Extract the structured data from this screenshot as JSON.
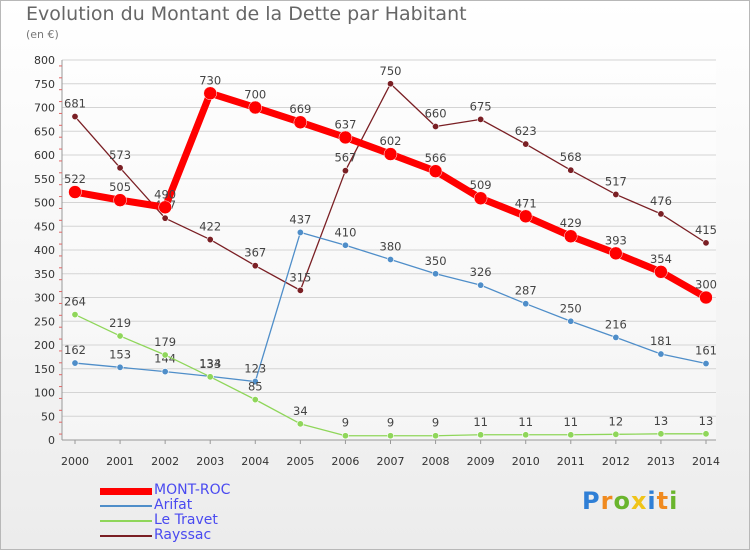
{
  "title": "Evolution du Montant de la Dette par Habitant",
  "subtitle": "(en €)",
  "brand": {
    "letters": [
      "P",
      "r",
      "o",
      "x",
      "i",
      "t",
      "i"
    ],
    "colors": [
      "#2f7fd6",
      "#f08a1f",
      "#6ab52d",
      "#f0c419",
      "#2f7fd6",
      "#f08a1f",
      "#6ab52d"
    ]
  },
  "chart_data": {
    "type": "line",
    "x": [
      "2000",
      "2001",
      "2002",
      "2003",
      "2004",
      "2005",
      "2006",
      "2007",
      "2008",
      "2009",
      "2010",
      "2011",
      "2012",
      "2013",
      "2014"
    ],
    "ylim": [
      0,
      800
    ],
    "yticks": [
      "0",
      "50",
      "100",
      "150",
      "200",
      "250",
      "300",
      "350",
      "400",
      "450",
      "500",
      "550",
      "600",
      "650",
      "700",
      "750",
      "800"
    ],
    "grid": true,
    "legend_position": "bottom-left",
    "series": [
      {
        "name": "Rayssac",
        "color": "#7a1f24",
        "values": [
          681,
          573,
          467,
          422,
          367,
          315,
          567,
          750,
          660,
          675,
          623,
          568,
          517,
          476,
          415
        ],
        "labels": [
          "681",
          "573",
          "467",
          "422",
          "367",
          "315",
          "567",
          "750",
          "660",
          "675",
          "623",
          "568",
          "517",
          "476",
          "415"
        ]
      },
      {
        "name": "Arifat",
        "color": "#4f8ec9",
        "values": [
          162,
          153,
          144,
          134,
          123,
          437,
          410,
          380,
          350,
          326,
          287,
          250,
          216,
          181,
          161
        ],
        "labels": [
          "162",
          "153",
          "144",
          "134",
          "123",
          "437",
          "410",
          "380",
          "350",
          "326",
          "287",
          "250",
          "216",
          "181",
          "161"
        ]
      },
      {
        "name": "Le Travet",
        "color": "#8fd65a",
        "values": [
          264,
          219,
          179,
          133,
          85,
          34,
          9,
          9,
          9,
          11,
          11,
          11,
          12,
          13,
          13
        ],
        "labels": [
          "264",
          "219",
          "179",
          "133",
          "85",
          "34",
          "9",
          "9",
          "9",
          "11",
          "11",
          "11",
          "12",
          "13",
          "13"
        ]
      },
      {
        "name": "MONT-ROC",
        "color": "#ff0000",
        "values": [
          522,
          505,
          490,
          730,
          700,
          669,
          637,
          602,
          566,
          509,
          471,
          429,
          393,
          354,
          300
        ],
        "labels": [
          "522",
          "505",
          "490",
          "730",
          "700",
          "669",
          "637",
          "602",
          "566",
          "509",
          "471",
          "429",
          "393",
          "354",
          "300"
        ]
      }
    ],
    "legend": [
      {
        "name": "MONT-ROC",
        "color": "#ff0000"
      },
      {
        "name": "Arifat",
        "color": "#4f8ec9"
      },
      {
        "name": "Le Travet",
        "color": "#8fd65a"
      },
      {
        "name": "Rayssac",
        "color": "#7a1f24"
      }
    ]
  }
}
